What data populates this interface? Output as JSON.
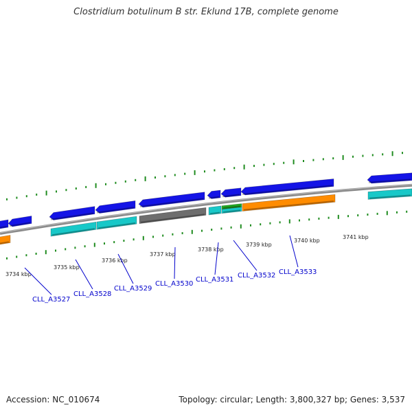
{
  "title": "Clostridium botulinum B str. Eklund 17B, complete genome",
  "footer": {
    "accession": "Accession: NC_010674",
    "stats": "Topology: circular; Length: 3,800,327 bp; Genes: 3,537"
  },
  "colors": {
    "forward_gene": "#1414e6",
    "reverse_gene": "#18c8c8",
    "orange_gene": "#ff8c00",
    "gray_gene": "#6e6e6e",
    "green_gene": "#22aa22",
    "backbone": "#8a8a8a",
    "tick": "#1f8c1f",
    "label": "#0000cc"
  },
  "position_scale": {
    "unit": "kbp",
    "labels": [
      "3734 kbp",
      "3735 kbp",
      "3736 kbp",
      "3737 kbp",
      "3738 kbp",
      "3739 kbp",
      "3740 kbp",
      "3741 kbp"
    ]
  },
  "gene_labels": [
    "CLL_A3527",
    "CLL_A3528",
    "CLL_A3529",
    "CLL_A3530",
    "CLL_A3531",
    "CLL_A3532",
    "CLL_A3533"
  ]
}
